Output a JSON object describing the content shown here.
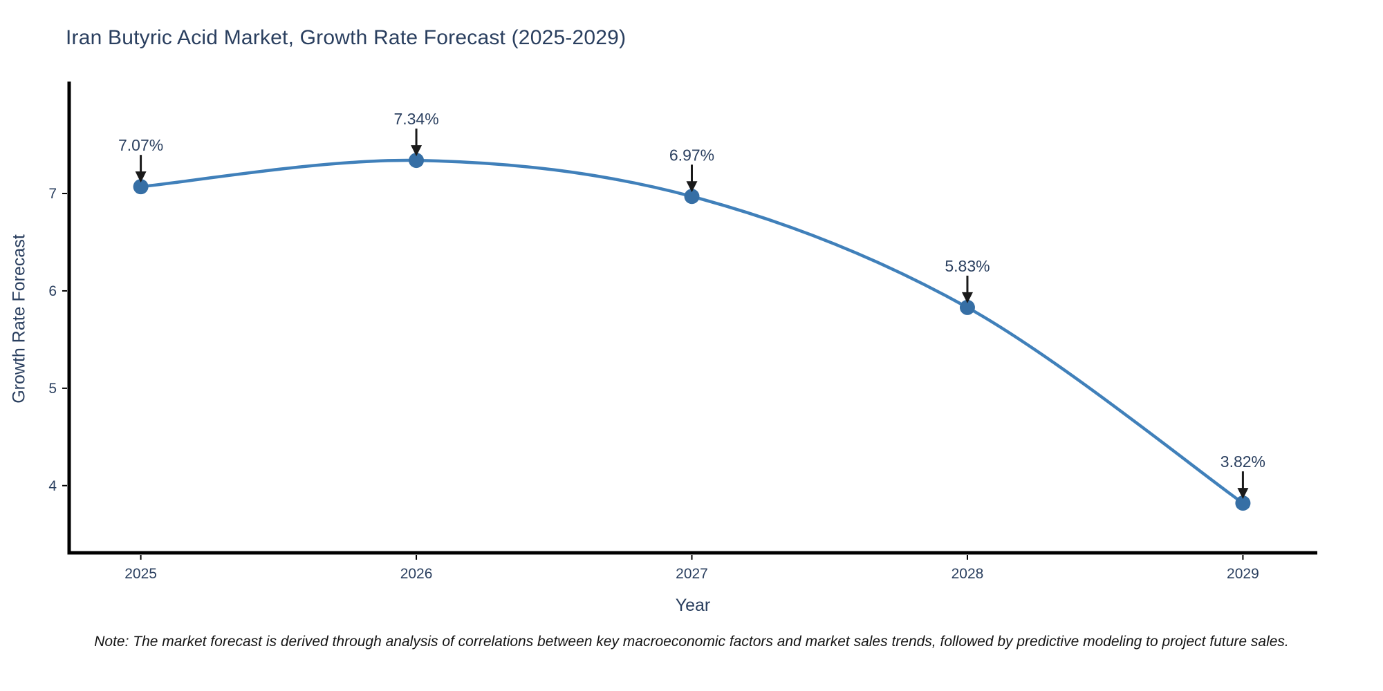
{
  "chart_data": {
    "type": "line",
    "title": "Iran Butyric Acid Market, Growth Rate Forecast (2025-2029)",
    "xlabel": "Year",
    "ylabel": "Growth Rate Forecast",
    "x": [
      2025,
      2026,
      2027,
      2028,
      2029
    ],
    "series": [
      {
        "name": "Growth Rate Forecast",
        "values": [
          7.07,
          7.34,
          6.97,
          5.83,
          3.82
        ]
      }
    ],
    "point_labels": [
      "7.07%",
      "7.34%",
      "6.97%",
      "5.83%",
      "3.82%"
    ],
    "xtick_labels": [
      "2025",
      "2026",
      "2027",
      "2028",
      "2029"
    ],
    "ytick_values": [
      4,
      5,
      6,
      7
    ],
    "xlim": [
      2024.74,
      2029.27
    ],
    "ylim": [
      3.31,
      8.15
    ],
    "line_shape": "spline",
    "grid": false,
    "legend_position": "none",
    "colors": {
      "line": "#4080ba",
      "marker": "#366fa5",
      "arrow": "#1a1a1a",
      "axis": "#000000",
      "text": "#2a3f5f",
      "background": "#ffffff"
    }
  },
  "note": "Note: The market forecast is derived through analysis of correlations between key macroeconomic factors and market sales trends, followed by predictive modeling to project future sales."
}
